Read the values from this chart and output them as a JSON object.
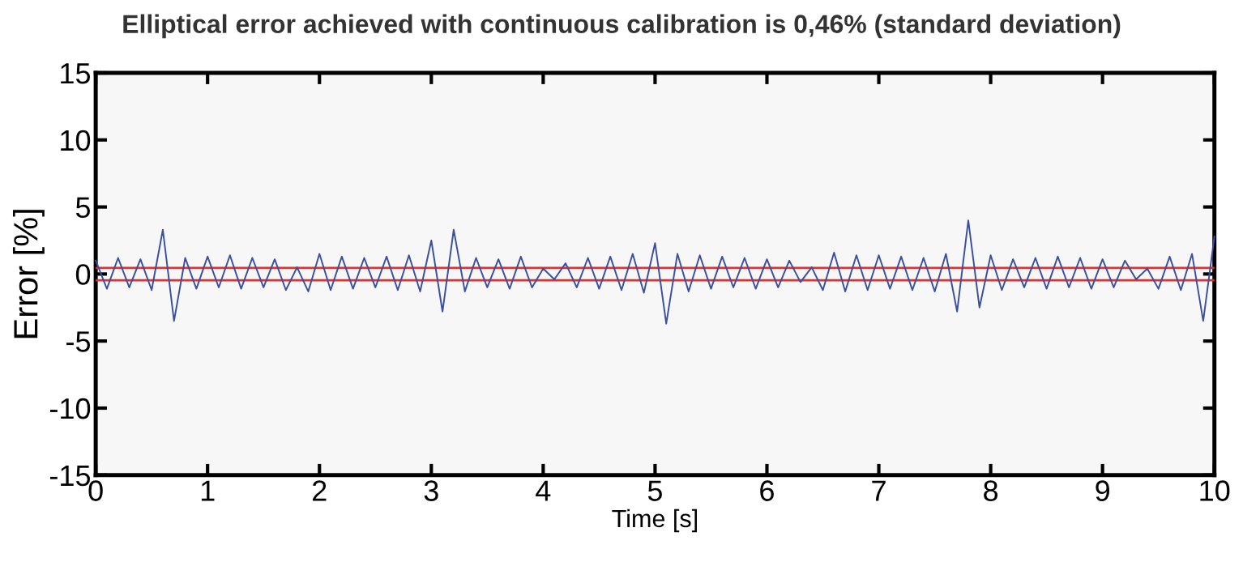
{
  "chart_data": {
    "type": "line",
    "title": "Elliptical error achieved with continuous calibration is 0,46% (standard deviation)",
    "xlabel": "Time [s]",
    "ylabel": "Error [%]",
    "x": [
      0,
      0.1,
      0.2,
      0.3,
      0.4,
      0.5,
      0.6,
      0.7,
      0.8,
      0.9,
      1.0,
      1.1,
      1.2,
      1.3,
      1.4,
      1.5,
      1.6,
      1.7,
      1.8,
      1.9,
      2.0,
      2.1,
      2.2,
      2.3,
      2.4,
      2.5,
      2.6,
      2.7,
      2.8,
      2.9,
      3.0,
      3.1,
      3.2,
      3.3,
      3.4,
      3.5,
      3.6,
      3.7,
      3.8,
      3.9,
      4.0,
      4.1,
      4.2,
      4.3,
      4.4,
      4.5,
      4.6,
      4.7,
      4.8,
      4.9,
      5.0,
      5.1,
      5.2,
      5.3,
      5.4,
      5.5,
      5.6,
      5.7,
      5.8,
      5.9,
      6.0,
      6.1,
      6.2,
      6.3,
      6.4,
      6.5,
      6.6,
      6.7,
      6.8,
      6.9,
      7.0,
      7.1,
      7.2,
      7.3,
      7.4,
      7.5,
      7.6,
      7.7,
      7.8,
      7.9,
      8.0,
      8.1,
      8.2,
      8.3,
      8.4,
      8.5,
      8.6,
      8.7,
      8.8,
      8.9,
      9.0,
      9.1,
      9.2,
      9.3,
      9.4,
      9.5,
      9.6,
      9.7,
      9.8,
      9.9,
      10.0
    ],
    "series": [
      {
        "color": "#3a4fa0",
        "values": [
          1.0,
          -1.1,
          1.2,
          -1.0,
          1.1,
          -1.2,
          3.3,
          -3.5,
          1.2,
          -1.1,
          1.3,
          -1.0,
          1.4,
          -1.1,
          1.2,
          -1.0,
          1.1,
          -1.2,
          0.5,
          -1.3,
          1.5,
          -1.2,
          1.3,
          -1.1,
          1.2,
          -1.0,
          1.3,
          -1.2,
          1.4,
          -1.3,
          2.5,
          -2.8,
          3.3,
          -1.3,
          1.2,
          -1.0,
          1.1,
          -1.1,
          1.3,
          -1.0,
          0.4,
          -0.4,
          0.8,
          -1.0,
          1.2,
          -1.1,
          1.3,
          -1.2,
          1.5,
          -1.4,
          2.3,
          -3.7,
          1.5,
          -1.3,
          1.4,
          -1.1,
          1.3,
          -1.0,
          1.2,
          -1.1,
          1.1,
          -1.0,
          1.0,
          -0.6,
          0.5,
          -1.2,
          1.6,
          -1.3,
          1.4,
          -1.2,
          1.4,
          -1.1,
          1.3,
          -1.2,
          1.2,
          -1.3,
          1.5,
          -2.8,
          4.0,
          -2.5,
          1.4,
          -1.2,
          1.1,
          -1.0,
          1.2,
          -1.1,
          1.3,
          -1.0,
          1.2,
          -1.1,
          1.1,
          -1.0,
          1.0,
          -0.4,
          0.4,
          -1.1,
          1.3,
          -1.2,
          1.5,
          -3.5,
          2.8
        ]
      }
    ],
    "ref_lines": [
      {
        "axis": "y",
        "value": 0.46,
        "color": "#e03030"
      },
      {
        "axis": "y",
        "value": -0.46,
        "color": "#e03030"
      }
    ],
    "xlim": [
      0,
      10
    ],
    "xticks": [
      0,
      1,
      2,
      3,
      4,
      5,
      6,
      7,
      8,
      9,
      10
    ],
    "ylim": [
      -15,
      15
    ],
    "yticks": [
      -15,
      -10,
      -5,
      0,
      5,
      10,
      15
    ],
    "grid": false,
    "legend": false
  }
}
